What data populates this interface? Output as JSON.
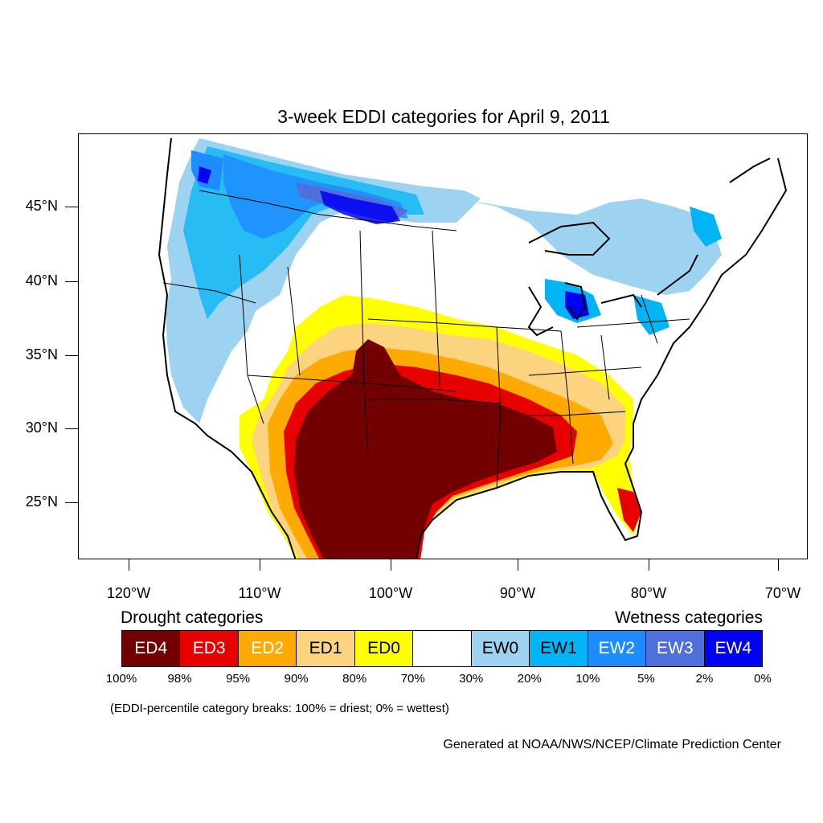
{
  "title": "3-week EDDI categories for April 9, 2011",
  "lat_labels": [
    "45°N",
    "40°N",
    "35°N",
    "30°N",
    "25°N"
  ],
  "lon_labels": [
    "120°W",
    "110°W",
    "100°W",
    "90°W",
    "80°W",
    "70°W"
  ],
  "legend": {
    "drought_heading": "Drought categories",
    "wetness_heading": "Wetness categories",
    "categories": [
      {
        "label": "ED4",
        "color": "#730000",
        "text_color": "#ffffff"
      },
      {
        "label": "ED3",
        "color": "#e60000",
        "text_color": "#ffffff"
      },
      {
        "label": "ED2",
        "color": "#ffaa00",
        "text_color": "#ffffff"
      },
      {
        "label": "ED1",
        "color": "#fcd37f",
        "text_color": "#000000"
      },
      {
        "label": "ED0",
        "color": "#ffff00",
        "text_color": "#000000"
      },
      {
        "label": "",
        "color": "#ffffff",
        "text_color": "#000000"
      },
      {
        "label": "EW0",
        "color": "#9dd3f0",
        "text_color": "#000000"
      },
      {
        "label": "EW1",
        "color": "#00b4f5",
        "text_color": "#000000"
      },
      {
        "label": "EW2",
        "color": "#1e8cff",
        "text_color": "#ffffff"
      },
      {
        "label": "EW3",
        "color": "#4f6fdb",
        "text_color": "#ffffff"
      },
      {
        "label": "EW4",
        "color": "#0000f5",
        "text_color": "#ffffff"
      }
    ],
    "breaks": [
      "100%",
      "98%",
      "95%",
      "90%",
      "80%",
      "70%",
      "30%",
      "20%",
      "10%",
      "5%",
      "2%",
      "0%"
    ]
  },
  "note": "(EDDI-percentile category breaks: 100% = driest; 0% = wettest)",
  "credit": "Generated at NOAA/NWS/NCEP/Climate Prediction Center"
}
